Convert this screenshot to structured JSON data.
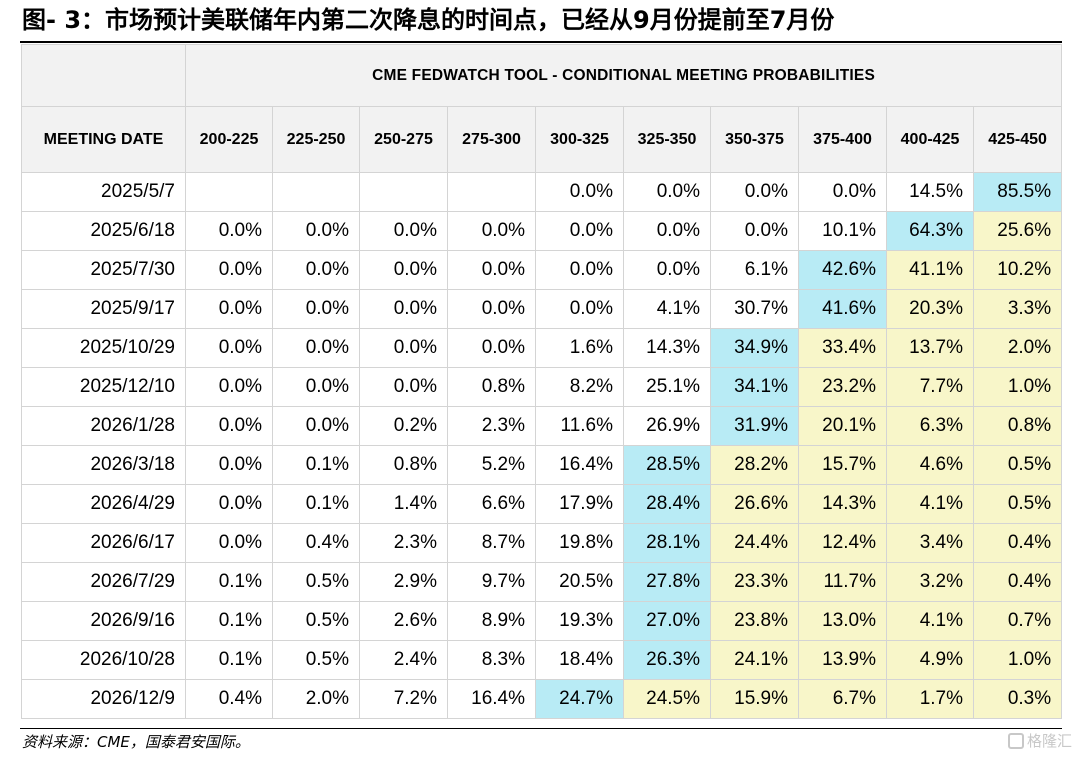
{
  "figure": {
    "title": "图- 3：市场预计美联储年内第二次降息的时间点，已经从9月份提前至7月份",
    "source": "资料来源：CME，国泰君安国际。",
    "watermark": "格隆汇"
  },
  "table": {
    "super_header": "CME FEDWATCH TOOL - CONDITIONAL MEETING PROBABILITIES",
    "date_header": "MEETING DATE",
    "columns": [
      "200-225",
      "225-250",
      "250-275",
      "275-300",
      "300-325",
      "325-350",
      "350-375",
      "375-400",
      "400-425",
      "425-450"
    ],
    "rows": [
      {
        "date": "2025/5/7",
        "values": [
          "",
          "",
          "",
          "",
          "0.0%",
          "0.0%",
          "0.0%",
          "0.0%",
          "14.5%",
          "85.5%"
        ],
        "highlight": {
          "9": "blue"
        }
      },
      {
        "date": "2025/6/18",
        "values": [
          "0.0%",
          "0.0%",
          "0.0%",
          "0.0%",
          "0.0%",
          "0.0%",
          "0.0%",
          "10.1%",
          "64.3%",
          "25.6%"
        ],
        "highlight": {
          "8": "blue",
          "9": "yellow"
        }
      },
      {
        "date": "2025/7/30",
        "values": [
          "0.0%",
          "0.0%",
          "0.0%",
          "0.0%",
          "0.0%",
          "0.0%",
          "6.1%",
          "42.6%",
          "41.1%",
          "10.2%"
        ],
        "highlight": {
          "7": "blue",
          "8": "yellow",
          "9": "yellow"
        }
      },
      {
        "date": "2025/9/17",
        "values": [
          "0.0%",
          "0.0%",
          "0.0%",
          "0.0%",
          "0.0%",
          "4.1%",
          "30.7%",
          "41.6%",
          "20.3%",
          "3.3%"
        ],
        "highlight": {
          "7": "blue",
          "8": "yellow",
          "9": "yellow"
        }
      },
      {
        "date": "2025/10/29",
        "values": [
          "0.0%",
          "0.0%",
          "0.0%",
          "0.0%",
          "1.6%",
          "14.3%",
          "34.9%",
          "33.4%",
          "13.7%",
          "2.0%"
        ],
        "highlight": {
          "6": "blue",
          "7": "yellow",
          "8": "yellow",
          "9": "yellow"
        }
      },
      {
        "date": "2025/12/10",
        "values": [
          "0.0%",
          "0.0%",
          "0.0%",
          "0.8%",
          "8.2%",
          "25.1%",
          "34.1%",
          "23.2%",
          "7.7%",
          "1.0%"
        ],
        "highlight": {
          "6": "blue",
          "7": "yellow",
          "8": "yellow",
          "9": "yellow"
        }
      },
      {
        "date": "2026/1/28",
        "values": [
          "0.0%",
          "0.0%",
          "0.2%",
          "2.3%",
          "11.6%",
          "26.9%",
          "31.9%",
          "20.1%",
          "6.3%",
          "0.8%"
        ],
        "highlight": {
          "6": "blue",
          "7": "yellow",
          "8": "yellow",
          "9": "yellow"
        }
      },
      {
        "date": "2026/3/18",
        "values": [
          "0.0%",
          "0.1%",
          "0.8%",
          "5.2%",
          "16.4%",
          "28.5%",
          "28.2%",
          "15.7%",
          "4.6%",
          "0.5%"
        ],
        "highlight": {
          "5": "blue",
          "6": "yellow",
          "7": "yellow",
          "8": "yellow",
          "9": "yellow"
        }
      },
      {
        "date": "2026/4/29",
        "values": [
          "0.0%",
          "0.1%",
          "1.4%",
          "6.6%",
          "17.9%",
          "28.4%",
          "26.6%",
          "14.3%",
          "4.1%",
          "0.5%"
        ],
        "highlight": {
          "5": "blue",
          "6": "yellow",
          "7": "yellow",
          "8": "yellow",
          "9": "yellow"
        }
      },
      {
        "date": "2026/6/17",
        "values": [
          "0.0%",
          "0.4%",
          "2.3%",
          "8.7%",
          "19.8%",
          "28.1%",
          "24.4%",
          "12.4%",
          "3.4%",
          "0.4%"
        ],
        "highlight": {
          "5": "blue",
          "6": "yellow",
          "7": "yellow",
          "8": "yellow",
          "9": "yellow"
        }
      },
      {
        "date": "2026/7/29",
        "values": [
          "0.1%",
          "0.5%",
          "2.9%",
          "9.7%",
          "20.5%",
          "27.8%",
          "23.3%",
          "11.7%",
          "3.2%",
          "0.4%"
        ],
        "highlight": {
          "5": "blue",
          "6": "yellow",
          "7": "yellow",
          "8": "yellow",
          "9": "yellow"
        }
      },
      {
        "date": "2026/9/16",
        "values": [
          "0.1%",
          "0.5%",
          "2.6%",
          "8.9%",
          "19.3%",
          "27.0%",
          "23.8%",
          "13.0%",
          "4.1%",
          "0.7%"
        ],
        "highlight": {
          "5": "blue",
          "6": "yellow",
          "7": "yellow",
          "8": "yellow",
          "9": "yellow"
        }
      },
      {
        "date": "2026/10/28",
        "values": [
          "0.1%",
          "0.5%",
          "2.4%",
          "8.3%",
          "18.4%",
          "26.3%",
          "24.1%",
          "13.9%",
          "4.9%",
          "1.0%"
        ],
        "highlight": {
          "5": "blue",
          "6": "yellow",
          "7": "yellow",
          "8": "yellow",
          "9": "yellow"
        }
      },
      {
        "date": "2026/12/9",
        "values": [
          "0.4%",
          "2.0%",
          "7.2%",
          "16.4%",
          "24.7%",
          "24.5%",
          "15.9%",
          "6.7%",
          "1.7%",
          "0.3%"
        ],
        "highlight": {
          "4": "blue",
          "5": "yellow",
          "6": "yellow",
          "7": "yellow",
          "8": "yellow",
          "9": "yellow"
        }
      }
    ]
  },
  "colors": {
    "blue_highlight": "#b8ebf5",
    "yellow_highlight": "#f8f6c9",
    "header_bg": "#f2f2f2"
  }
}
